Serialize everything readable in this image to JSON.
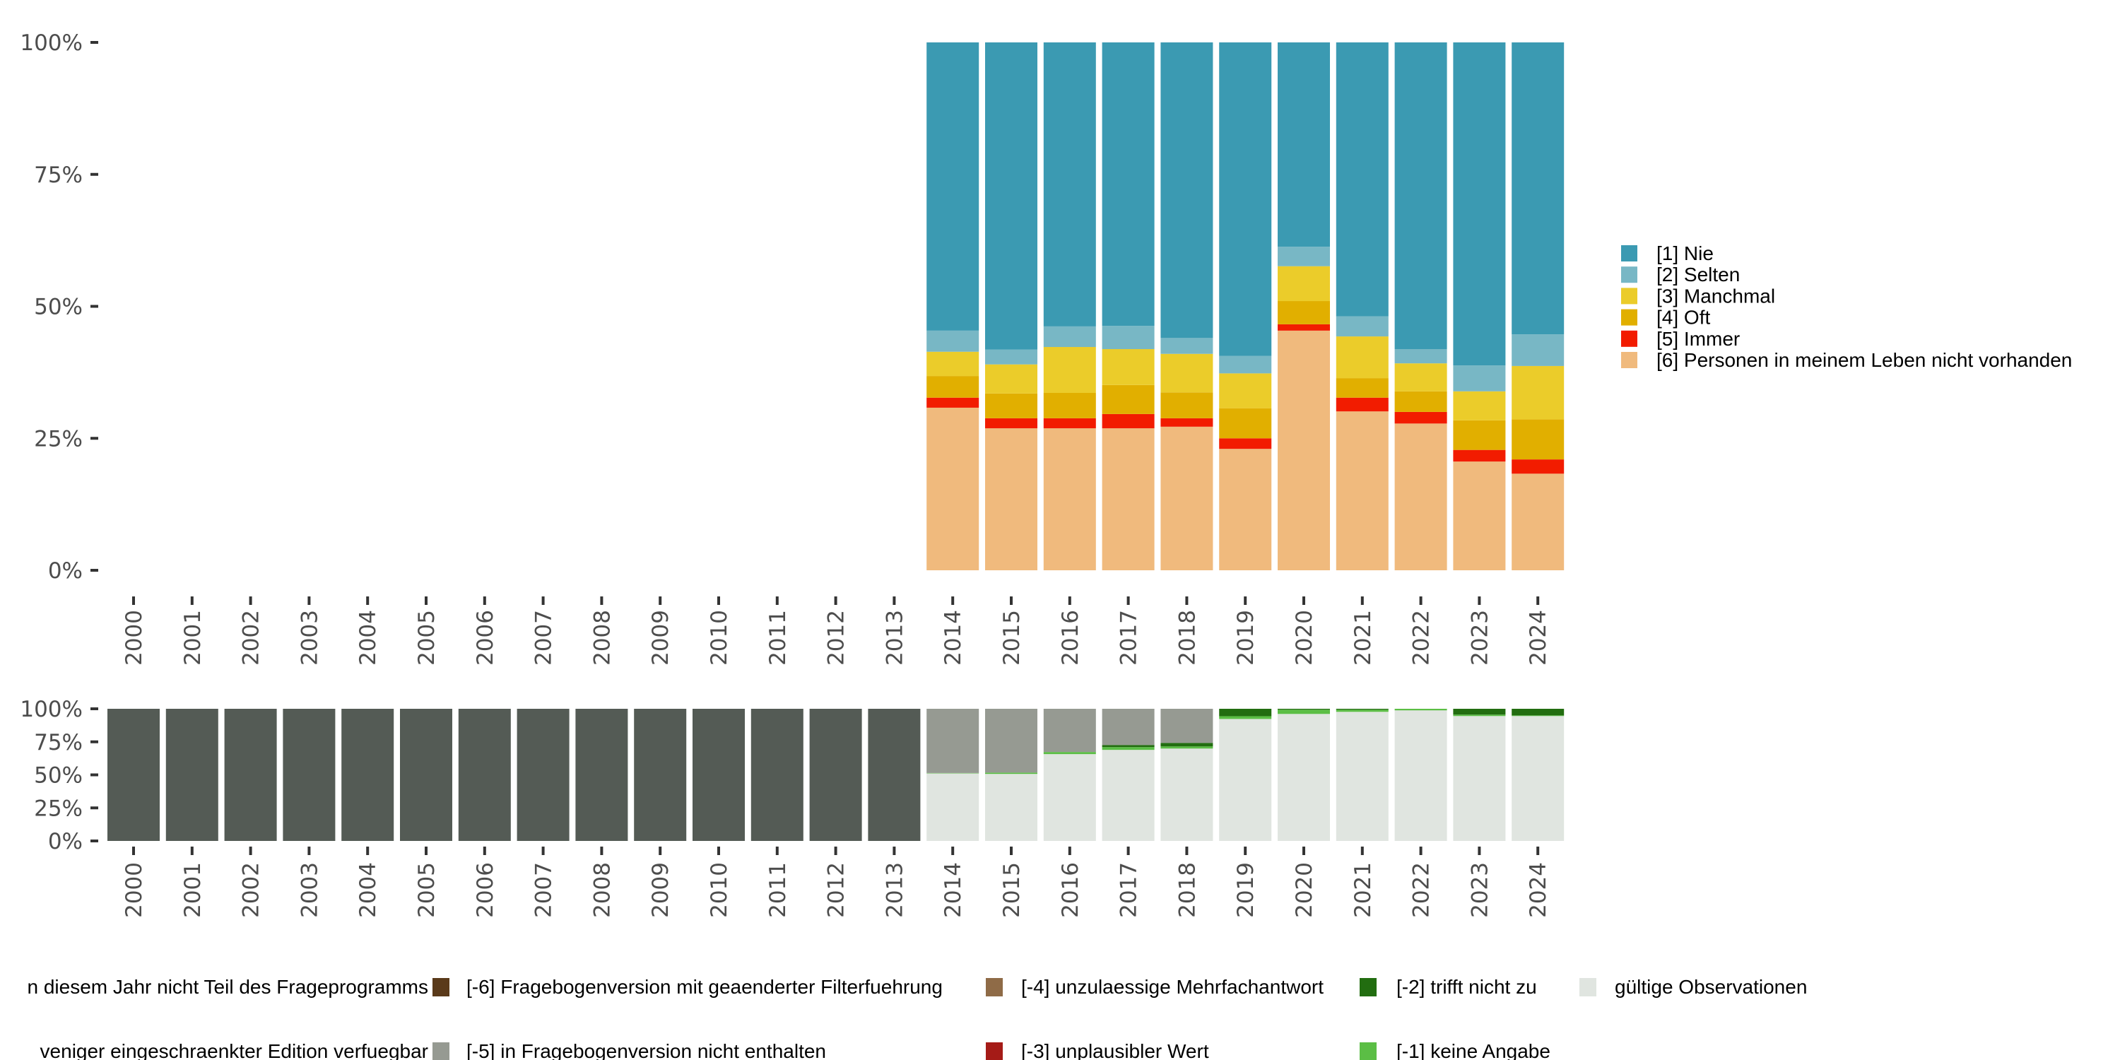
{
  "chart_data": [
    {
      "panel": "top",
      "type": "bar",
      "stacked": true,
      "normalized": true,
      "title": "",
      "xlabel": "",
      "ylabel": "",
      "ylim": [
        0,
        100
      ],
      "y_ticks": [
        "0%",
        "25%",
        "50%",
        "75%",
        "100%"
      ],
      "grid": false,
      "legend_position": "right",
      "categories": [
        "2000",
        "2001",
        "2002",
        "2003",
        "2004",
        "2005",
        "2006",
        "2007",
        "2008",
        "2009",
        "2010",
        "2011",
        "2012",
        "2013",
        "2014",
        "2015",
        "2016",
        "2017",
        "2018",
        "2019",
        "2020",
        "2021",
        "2022",
        "2023",
        "2024"
      ],
      "series": [
        {
          "name": "[6] Personen in meinem Leben nicht vorhanden",
          "color": "#f0ba7d",
          "values": [
            null,
            null,
            null,
            null,
            null,
            null,
            null,
            null,
            null,
            null,
            null,
            null,
            null,
            null,
            30.8,
            26.9,
            26.9,
            26.9,
            27.2,
            23.0,
            45.4,
            30.1,
            27.8,
            20.6,
            18.3
          ]
        },
        {
          "name": "[5] Immer",
          "color": "#f21c00",
          "values": [
            null,
            null,
            null,
            null,
            null,
            null,
            null,
            null,
            null,
            null,
            null,
            null,
            null,
            null,
            1.9,
            1.9,
            1.9,
            2.7,
            1.6,
            2.0,
            1.2,
            2.6,
            2.2,
            2.2,
            2.7
          ]
        },
        {
          "name": "[4] Oft",
          "color": "#e1af00",
          "values": [
            null,
            null,
            null,
            null,
            null,
            null,
            null,
            null,
            null,
            null,
            null,
            null,
            null,
            null,
            4.1,
            4.7,
            4.8,
            5.5,
            4.9,
            5.7,
            4.4,
            3.7,
            3.9,
            5.6,
            7.6
          ]
        },
        {
          "name": "[3] Manchmal",
          "color": "#ebcc2a",
          "values": [
            null,
            null,
            null,
            null,
            null,
            null,
            null,
            null,
            null,
            null,
            null,
            null,
            null,
            null,
            4.6,
            5.5,
            8.7,
            6.8,
            7.3,
            6.6,
            6.6,
            7.9,
            5.3,
            5.5,
            10.1
          ]
        },
        {
          "name": "[2] Selten",
          "color": "#78b7c5",
          "values": [
            null,
            null,
            null,
            null,
            null,
            null,
            null,
            null,
            null,
            null,
            null,
            null,
            null,
            null,
            4.0,
            2.8,
            3.9,
            4.4,
            3.0,
            3.3,
            3.7,
            3.8,
            2.7,
            4.9,
            6.0
          ]
        },
        {
          "name": "[1] Nie",
          "color": "#3b9ab2",
          "values": [
            null,
            null,
            null,
            null,
            null,
            null,
            null,
            null,
            null,
            null,
            null,
            null,
            null,
            null,
            54.6,
            58.2,
            53.8,
            53.7,
            56.0,
            59.4,
            38.7,
            51.9,
            58.1,
            61.2,
            55.3
          ]
        }
      ],
      "legend": [
        {
          "label": "[1] Nie",
          "color": "#3b9ab2"
        },
        {
          "label": "[2] Selten",
          "color": "#78b7c5"
        },
        {
          "label": "[3] Manchmal",
          "color": "#ebcc2a"
        },
        {
          "label": "[4] Oft",
          "color": "#e1af00"
        },
        {
          "label": "[5] Immer",
          "color": "#f21c00"
        },
        {
          "label": "[6] Personen in meinem Leben nicht vorhanden",
          "color": "#f0ba7d"
        }
      ]
    },
    {
      "panel": "bottom",
      "type": "bar",
      "stacked": true,
      "normalized": true,
      "title": "",
      "xlabel": "",
      "ylabel": "",
      "ylim": [
        0,
        100
      ],
      "y_ticks": [
        "0%",
        "25%",
        "50%",
        "75%",
        "100%"
      ],
      "grid": false,
      "legend_position": "bottom",
      "categories": [
        "2000",
        "2001",
        "2002",
        "2003",
        "2004",
        "2005",
        "2006",
        "2007",
        "2008",
        "2009",
        "2010",
        "2011",
        "2012",
        "2013",
        "2014",
        "2015",
        "2016",
        "2017",
        "2018",
        "2019",
        "2020",
        "2021",
        "2022",
        "2023",
        "2024"
      ],
      "series": [
        {
          "name": "gültige Observationen",
          "color": "#e0e5e0",
          "values": [
            0,
            0,
            0,
            0,
            0,
            0,
            0,
            0,
            0,
            0,
            0,
            0,
            0,
            0,
            51.1,
            50.7,
            65.7,
            68.9,
            69.9,
            92.3,
            96.1,
            97.7,
            98.8,
            94.5,
            94.5
          ]
        },
        {
          "name": "[-1] keine Angabe",
          "color": "#5bbe45",
          "values": [
            0,
            0,
            0,
            0,
            0,
            0,
            0,
            0,
            0,
            0,
            0,
            0,
            0,
            0,
            0.3,
            1.0,
            1.6,
            2.1,
            1.6,
            2.1,
            3.2,
            1.6,
            1.2,
            1.1,
            0.5
          ]
        },
        {
          "name": "[-2] trifft nicht zu",
          "color": "#226d10",
          "values": [
            0,
            0,
            0,
            0,
            0,
            0,
            0,
            0,
            0,
            0,
            0,
            0,
            0,
            0,
            0,
            0,
            0,
            1.6,
            2.7,
            5.6,
            0.7,
            0.7,
            0,
            4.4,
            5.0
          ]
        },
        {
          "name": "[-5] in Fragebogenversion nicht enthalten",
          "color": "#969a92",
          "values": [
            0,
            0,
            0,
            0,
            0,
            0,
            0,
            0,
            0,
            0,
            0,
            0,
            0,
            0,
            48.6,
            48.3,
            32.7,
            27.4,
            25.8,
            0,
            0,
            0,
            0,
            0,
            0
          ]
        },
        {
          "name": "in diesem Jahr nicht Teil des Frageprogramms",
          "color": "#545b55",
          "values": [
            100,
            100,
            100,
            100,
            100,
            100,
            100,
            100,
            100,
            100,
            100,
            100,
            100,
            100,
            0,
            0,
            0,
            0,
            0,
            0,
            0,
            0,
            0,
            0,
            0
          ]
        }
      ],
      "legend": [
        {
          "label": "n diesem Jahr nicht Teil des Frageprogramms",
          "color": null,
          "row": 0
        },
        {
          "label": "veniger eingeschraenkter Edition verfuegbar",
          "color": null,
          "row": 1
        },
        {
          "label": "[-6] Fragebogenversion mit geaenderter Filterfuehrung",
          "color": "#5a3a1a",
          "row": 0
        },
        {
          "label": "[-5] in Fragebogenversion nicht enthalten",
          "color": "#969a92",
          "row": 1
        },
        {
          "label": "[-4] unzulaessige Mehrfachantwort",
          "color": "#8f6b47",
          "row": 0
        },
        {
          "label": "[-3] unplausibler Wert",
          "color": "#a51b17",
          "row": 1
        },
        {
          "label": "[-2] trifft nicht zu",
          "color": "#226d10",
          "row": 0
        },
        {
          "label": "[-1] keine Angabe",
          "color": "#5bbe45",
          "row": 1
        },
        {
          "label": "gültige Observationen",
          "color": "#e0e5e0",
          "row": 0
        }
      ]
    }
  ]
}
